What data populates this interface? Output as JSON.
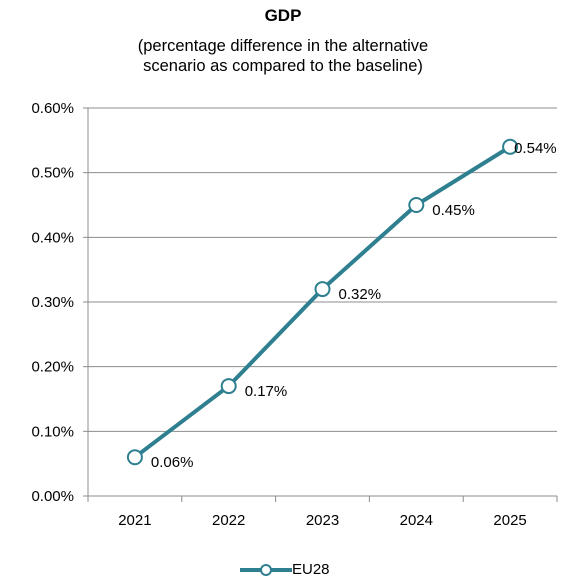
{
  "chart_data": {
    "type": "line",
    "title": "GDP",
    "subtitle_line1": "(percentage difference in the alternative",
    "subtitle_line2": "scenario as compared to the baseline)",
    "categories": [
      "2021",
      "2022",
      "2023",
      "2024",
      "2025"
    ],
    "series": [
      {
        "name": "EU28",
        "values": [
          0.06,
          0.17,
          0.32,
          0.45,
          0.54
        ],
        "labels": [
          "0.06%",
          "0.17%",
          "0.32%",
          "0.45%",
          "0.54%"
        ]
      }
    ],
    "yticks": [
      "0.00%",
      "0.10%",
      "0.20%",
      "0.30%",
      "0.40%",
      "0.50%",
      "0.60%"
    ],
    "ylim": [
      0,
      0.6
    ],
    "grid": true,
    "legend": "bottom",
    "color": "#2e7f8f"
  }
}
